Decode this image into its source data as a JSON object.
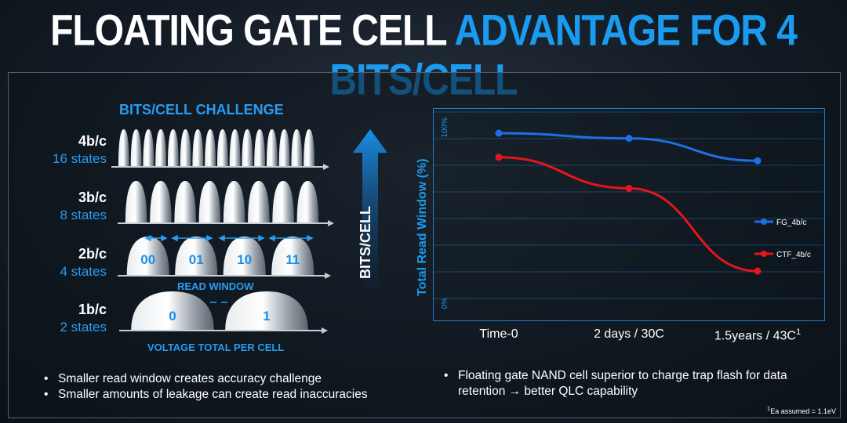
{
  "title": {
    "part1": "FLOATING GATE CELL",
    "part2": "ADVANTAGE FOR 4 BITS/CELL"
  },
  "left": {
    "heading": "BITS/CELL CHALLENGE",
    "rows": [
      {
        "bits": "4b/c",
        "states": "16 states"
      },
      {
        "bits": "3b/c",
        "states": "8 states"
      },
      {
        "bits": "2b/c",
        "states": "4 states"
      },
      {
        "bits": "1b/c",
        "states": "2 states"
      }
    ],
    "state_labels_2b": [
      "00",
      "01",
      "10",
      "11"
    ],
    "state_labels_1b": [
      "0",
      "1"
    ],
    "read_window_label": "READ WINDOW",
    "voltage_label": "VOLTAGE TOTAL PER CELL",
    "arrow_label": "BITS/CELL",
    "bullets": [
      "Smaller read window creates accuracy challenge",
      "Smaller amounts of leakage can create read inaccuracies"
    ]
  },
  "chart_data": {
    "type": "line",
    "ylabel": "Total Read Window (%)",
    "yticks": [
      "100%",
      "0%"
    ],
    "ylim": [
      0,
      100
    ],
    "grid": true,
    "categories": [
      "Time-0",
      "2 days / 30C",
      "1.5years / 43C"
    ],
    "category_superscript": [
      "",
      "",
      "1"
    ],
    "series": [
      {
        "name": "FG_4b/c",
        "color": "#1e6fe6",
        "values": [
          100,
          97,
          84
        ]
      },
      {
        "name": "CTF_4b/c",
        "color": "#e8141c",
        "values": [
          86,
          68,
          20
        ]
      }
    ],
    "legend_placement": "right"
  },
  "right": {
    "bullets": [
      "Floating gate NAND cell superior to charge trap flash for data retention → better QLC capability"
    ],
    "footnote_sup": "1",
    "footnote": "Ea assumed = 1.1eV"
  }
}
